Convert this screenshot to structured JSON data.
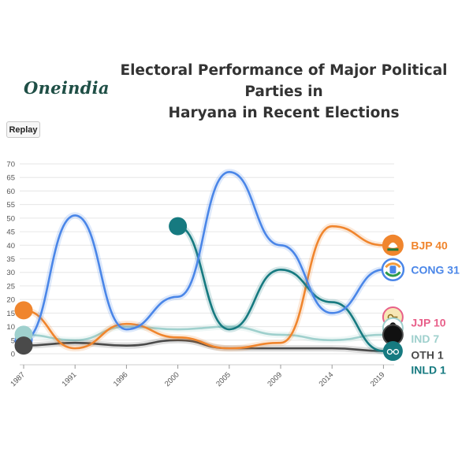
{
  "logo": "Oneindia",
  "title_line1": "Electoral Performance of Major Political Parties in",
  "title_line2": "Haryana in Recent Elections",
  "replay_label": "Replay",
  "colors": {
    "BJP": "#f0852d",
    "CONG": "#4a86e8",
    "JJP": "#e8608a",
    "IND": "#9fd0cd",
    "OTH": "#4a4a4a",
    "INLD": "#167a80",
    "grid": "#e6e6e6",
    "axis": "#555555"
  },
  "chart_data": {
    "type": "line",
    "title": "Electoral Performance of Major Political Parties in Haryana in Recent Elections",
    "xlabel": "",
    "ylabel": "",
    "categories": [
      "1987",
      "1991",
      "1996",
      "2000",
      "2005",
      "2009",
      "2014",
      "2019"
    ],
    "ylim": [
      0,
      70
    ],
    "yticks": [
      0,
      5,
      10,
      15,
      20,
      25,
      30,
      35,
      40,
      45,
      50,
      55,
      60,
      65,
      70
    ],
    "grid": true,
    "series": [
      {
        "name": "BJP",
        "values": [
          16,
          2,
          11,
          6,
          2,
          4,
          47,
          40
        ],
        "label": "BJP 40",
        "icon": "lotus-icon"
      },
      {
        "name": "CONG",
        "values": [
          5,
          51,
          9,
          21,
          67,
          40,
          15,
          31
        ],
        "label": "CONG 31",
        "icon": "hand-icon"
      },
      {
        "name": "JJP",
        "values": [
          null,
          null,
          null,
          null,
          null,
          null,
          null,
          10
        ],
        "label": "JJP 10",
        "icon": "key-icon"
      },
      {
        "name": "IND",
        "values": [
          7,
          5,
          10,
          9,
          10,
          7,
          5,
          7
        ],
        "label": "IND 7",
        "icon": "person-icon"
      },
      {
        "name": "OTH",
        "values": [
          3,
          4,
          3,
          5,
          2,
          2,
          2,
          1
        ],
        "label": "OTH 1",
        "icon": "party-icon"
      },
      {
        "name": "INLD",
        "values": [
          null,
          null,
          null,
          47,
          9,
          31,
          19,
          1
        ],
        "label": "INLD 1",
        "icon": "spectacles-icon"
      }
    ]
  }
}
